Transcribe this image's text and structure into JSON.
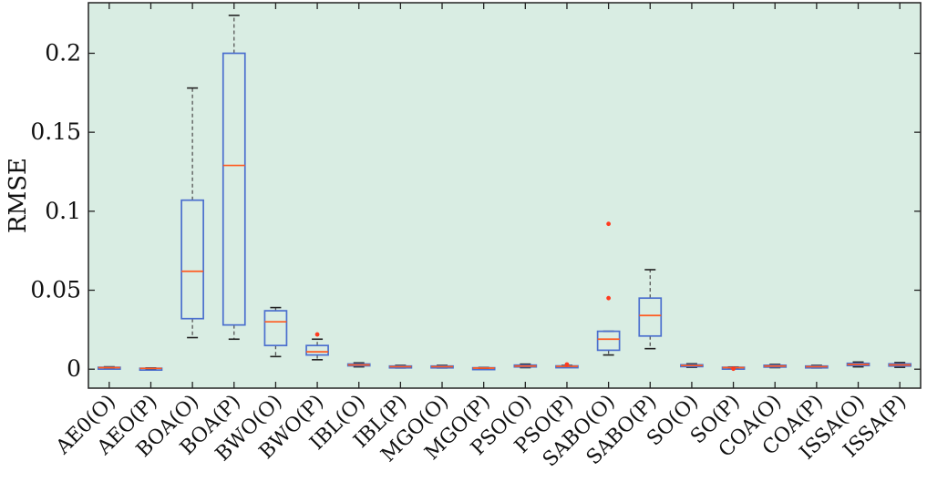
{
  "chart_data": {
    "type": "box",
    "title": "",
    "xlabel": "",
    "ylabel": "RMSE",
    "ylim": [
      -0.012,
      0.232
    ],
    "yticks": [
      0,
      0.05,
      0.1,
      0.15,
      0.2
    ],
    "ytick_labels": [
      "0",
      "0.05",
      "0.1",
      "0.15",
      "0.2"
    ],
    "grid": false,
    "colors": {
      "plot_background": "#d9ede3",
      "box": "#4b6fce",
      "median": "#ff5a1f",
      "whisker": "#555555",
      "cap": "#222222",
      "outlier": "#ff3b1f"
    },
    "categories": [
      "AE0(O)",
      "AEO(P)",
      "BOA(O)",
      "BOA(P)",
      "BWO(O)",
      "BWO(P)",
      "IBL(O)",
      "IBL(P)",
      "MGO(O)",
      "MGO(P)",
      "PSO(O)",
      "PSO(P)",
      "SABO(O)",
      "SABO(P)",
      "SO(O)",
      "SO(P)",
      "COA(O)",
      "COA(P)",
      "ISSA(O)",
      "ISSA(P)"
    ],
    "boxes": [
      {
        "whislo": 0.0005,
        "q1": 0.0008,
        "med": 0.001,
        "q3": 0.0012,
        "whishi": 0.0015,
        "fliers": []
      },
      {
        "whislo": 0.0002,
        "q1": 0.0004,
        "med": 0.0005,
        "q3": 0.0006,
        "whishi": 0.0008,
        "fliers": []
      },
      {
        "whislo": 0.02,
        "q1": 0.032,
        "med": 0.062,
        "q3": 0.107,
        "whishi": 0.178,
        "fliers": []
      },
      {
        "whislo": 0.019,
        "q1": 0.028,
        "med": 0.129,
        "q3": 0.2,
        "whishi": 0.224,
        "fliers": []
      },
      {
        "whislo": 0.008,
        "q1": 0.015,
        "med": 0.03,
        "q3": 0.037,
        "whishi": 0.039,
        "fliers": []
      },
      {
        "whislo": 0.006,
        "q1": 0.009,
        "med": 0.011,
        "q3": 0.015,
        "whishi": 0.019,
        "fliers": [
          0.022
        ]
      },
      {
        "whislo": 0.0015,
        "q1": 0.0022,
        "med": 0.0027,
        "q3": 0.0033,
        "whishi": 0.004,
        "fliers": []
      },
      {
        "whislo": 0.0008,
        "q1": 0.0012,
        "med": 0.0016,
        "q3": 0.002,
        "whishi": 0.0024,
        "fliers": []
      },
      {
        "whislo": 0.0008,
        "q1": 0.0012,
        "med": 0.0016,
        "q3": 0.002,
        "whishi": 0.0024,
        "fliers": []
      },
      {
        "whislo": 0.0003,
        "q1": 0.0005,
        "med": 0.0007,
        "q3": 0.0009,
        "whishi": 0.0011,
        "fliers": []
      },
      {
        "whislo": 0.001,
        "q1": 0.0015,
        "med": 0.002,
        "q3": 0.0026,
        "whishi": 0.0032,
        "fliers": []
      },
      {
        "whislo": 0.0012,
        "q1": 0.0015,
        "med": 0.0018,
        "q3": 0.0021,
        "whishi": 0.0024,
        "fliers": [
          0.003
        ]
      },
      {
        "whislo": 0.009,
        "q1": 0.012,
        "med": 0.019,
        "q3": 0.024,
        "whishi": 0.024,
        "fliers": [
          0.045,
          0.092
        ]
      },
      {
        "whislo": 0.013,
        "q1": 0.021,
        "med": 0.034,
        "q3": 0.045,
        "whishi": 0.063,
        "fliers": []
      },
      {
        "whislo": 0.0012,
        "q1": 0.0018,
        "med": 0.0023,
        "q3": 0.0028,
        "whishi": 0.0034,
        "fliers": []
      },
      {
        "whislo": 0.0005,
        "q1": 0.0008,
        "med": 0.001,
        "q3": 0.0012,
        "whishi": 0.0014,
        "fliers": [
          0.0003
        ]
      },
      {
        "whislo": 0.001,
        "q1": 0.0015,
        "med": 0.002,
        "q3": 0.0025,
        "whishi": 0.003,
        "fliers": []
      },
      {
        "whislo": 0.0008,
        "q1": 0.0012,
        "med": 0.0016,
        "q3": 0.002,
        "whishi": 0.0024,
        "fliers": []
      },
      {
        "whislo": 0.0015,
        "q1": 0.0023,
        "med": 0.003,
        "q3": 0.0037,
        "whishi": 0.0045,
        "fliers": []
      },
      {
        "whislo": 0.0012,
        "q1": 0.002,
        "med": 0.0027,
        "q3": 0.0034,
        "whishi": 0.0042,
        "fliers": []
      }
    ]
  }
}
